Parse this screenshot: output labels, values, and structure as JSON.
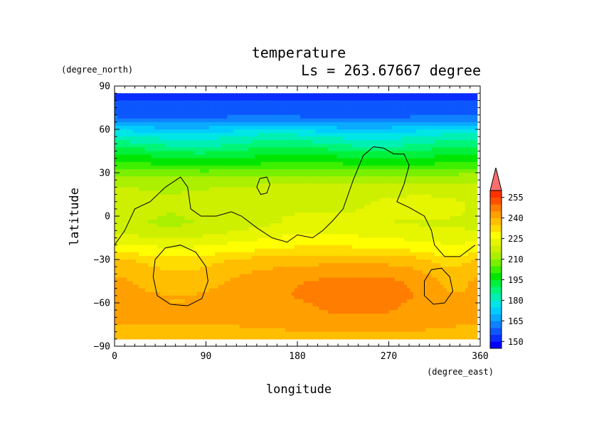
{
  "chart_data": {
    "type": "heatmap",
    "title": "temperature",
    "subtitle": "Ls = 263.67667 degree",
    "xlabel": "longitude",
    "ylabel": "latitude",
    "x_unit": "(degree_east)",
    "y_unit": "(degree_north)",
    "xlim": [
      0,
      360
    ],
    "ylim": [
      -90,
      90
    ],
    "x_ticks": [
      "0",
      "90",
      "180",
      "270",
      "360"
    ],
    "y_ticks": [
      "90",
      "60",
      "30",
      "0",
      "−30",
      "−60",
      "−90"
    ],
    "colorbar": {
      "levels": [
        145,
        150,
        155,
        160,
        165,
        170,
        175,
        180,
        185,
        190,
        195,
        200,
        205,
        210,
        215,
        220,
        225,
        230,
        235,
        240,
        245,
        250,
        255,
        260
      ],
      "colors": [
        "#0000ff",
        "#0a2dff",
        "#0d57ff",
        "#0f82ff",
        "#0aaaff",
        "#00cdff",
        "#00e6e6",
        "#00f0b4",
        "#00f578",
        "#00f03c",
        "#00e600",
        "#3cf000",
        "#78f000",
        "#aaf000",
        "#cdf000",
        "#e6f500",
        "#ffff00",
        "#ffdc00",
        "#ffbe00",
        "#ffa000",
        "#ff7d00",
        "#ff5000",
        "#ff3200",
        "#ff6e6e"
      ],
      "tick_labels": [
        "150",
        "165",
        "180",
        "195",
        "210",
        "225",
        "240",
        "255"
      ],
      "extend": "max"
    },
    "zonal_profile": {
      "latitude": [
        85,
        80,
        75,
        70,
        65,
        60,
        55,
        50,
        45,
        40,
        35,
        30,
        25,
        20,
        15,
        10,
        5,
        0,
        -5,
        -10,
        -15,
        -20,
        -25,
        -30,
        -35,
        -40,
        -45,
        -50,
        -55,
        -60,
        -65,
        -70,
        -75,
        -80,
        -85
      ],
      "temperature": [
        149,
        150,
        151,
        153,
        160,
        168,
        175,
        180,
        186,
        191,
        196,
        203,
        208,
        211,
        213,
        214,
        214,
        214,
        213,
        215,
        218,
        222,
        226,
        232,
        234,
        236,
        237,
        237,
        237,
        236,
        236,
        236,
        235,
        234,
        232
      ]
    },
    "anomalies": [
      {
        "lon": 240,
        "lat": -56,
        "rlon": 80,
        "rlat": 20,
        "amp": 6
      },
      {
        "lon": 65,
        "lat": -38,
        "rlon": 55,
        "rlat": 18,
        "amp": -5
      },
      {
        "lon": 330,
        "lat": -47,
        "rlon": 30,
        "rlat": 18,
        "amp": -4
      },
      {
        "lon": 55,
        "lat": 2,
        "rlon": 55,
        "rlat": 22,
        "amp": -4
      },
      {
        "lon": 300,
        "lat": 8,
        "rlon": 55,
        "rlat": 22,
        "amp": 2
      },
      {
        "lon": 200,
        "lat": -12,
        "rlon": 60,
        "rlat": 12,
        "amp": 4
      },
      {
        "lon": 330,
        "lat": -28,
        "rlon": 30,
        "rlat": 10,
        "amp": -3
      }
    ],
    "contours": [
      [
        [
          0,
          -20
        ],
        [
          10,
          -10
        ],
        [
          20,
          5
        ],
        [
          35,
          10
        ],
        [
          50,
          20
        ],
        [
          65,
          27
        ],
        [
          72,
          20
        ],
        [
          75,
          5
        ],
        [
          85,
          0
        ],
        [
          100,
          0
        ],
        [
          115,
          3
        ],
        [
          125,
          0
        ],
        [
          140,
          -8
        ],
        [
          155,
          -15
        ],
        [
          170,
          -18
        ],
        [
          180,
          -13
        ],
        [
          195,
          -15
        ],
        [
          205,
          -10
        ],
        [
          215,
          -3
        ],
        [
          225,
          5
        ],
        [
          230,
          15
        ],
        [
          235,
          25
        ],
        [
          245,
          42
        ],
        [
          255,
          48
        ],
        [
          265,
          47
        ],
        [
          275,
          43
        ],
        [
          285,
          43
        ],
        [
          290,
          35
        ],
        [
          285,
          22
        ],
        [
          278,
          10
        ],
        [
          290,
          6
        ],
        [
          305,
          0
        ],
        [
          312,
          -10
        ],
        [
          315,
          -20
        ],
        [
          325,
          -28
        ],
        [
          340,
          -28
        ],
        [
          355,
          -20
        ]
      ],
      [
        [
          140,
          20
        ],
        [
          143,
          26
        ],
        [
          150,
          27
        ],
        [
          153,
          22
        ],
        [
          150,
          16
        ],
        [
          144,
          15
        ],
        [
          140,
          20
        ]
      ],
      [
        [
          40,
          -30
        ],
        [
          50,
          -22
        ],
        [
          65,
          -20
        ],
        [
          80,
          -25
        ],
        [
          90,
          -35
        ],
        [
          92,
          -45
        ],
        [
          86,
          -57
        ],
        [
          72,
          -62
        ],
        [
          55,
          -61
        ],
        [
          42,
          -55
        ],
        [
          38,
          -42
        ],
        [
          40,
          -30
        ]
      ],
      [
        [
          305,
          -45
        ],
        [
          312,
          -37
        ],
        [
          322,
          -36
        ],
        [
          330,
          -42
        ],
        [
          333,
          -52
        ],
        [
          325,
          -60
        ],
        [
          314,
          -61
        ],
        [
          305,
          -55
        ],
        [
          305,
          -45
        ]
      ]
    ]
  }
}
